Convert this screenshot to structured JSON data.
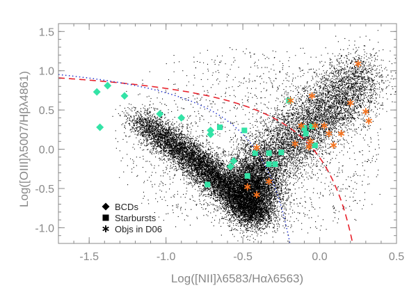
{
  "chart_data": {
    "type": "scatter",
    "title": "",
    "xlabel": "Log([NII]λ6583/Hαλ6563)",
    "ylabel": "Log([OIII]λ5007/Hβλ4861)",
    "xlim": [
      -1.7,
      0.5
    ],
    "ylim": [
      -1.2,
      1.6
    ],
    "x_ticks": [
      "-1.5",
      "-1.0",
      "-0.5",
      "0.0",
      "0.5"
    ],
    "y_ticks": [
      "-1.0",
      "-0.5",
      "0.0",
      "0.5",
      "1.0",
      "1.5"
    ],
    "grid": false,
    "legend_position": "bottom-left",
    "colors": {
      "background_cloud": "#000000",
      "bcd_starburst": "#33e3a6",
      "d06_objects": "#f4731f",
      "kewley_curve": "#e8202a",
      "kauffmann_curve": "#2233cc",
      "axis": "#888888"
    },
    "legend": [
      {
        "label": "BCDs",
        "marker": "diamond"
      },
      {
        "label": "Starbursts",
        "marker": "square"
      },
      {
        "label": "Objs in D06",
        "marker": "asterisk"
      }
    ],
    "series": [
      {
        "name": "BCDs",
        "marker": "diamond",
        "color": "#33e3a6",
        "points": [
          [
            -1.45,
            0.73
          ],
          [
            -1.38,
            0.81
          ],
          [
            -1.27,
            0.68
          ],
          [
            -1.43,
            0.28
          ],
          [
            -1.04,
            0.45
          ],
          [
            -0.9,
            0.4
          ],
          [
            -0.71,
            0.24
          ],
          [
            -0.71,
            0.19
          ],
          [
            -0.56,
            -0.15
          ],
          [
            -0.58,
            -0.22
          ]
        ]
      },
      {
        "name": "Starbursts",
        "marker": "square",
        "color": "#33e3a6",
        "points": [
          [
            -0.65,
            0.28
          ],
          [
            -0.49,
            0.24
          ],
          [
            -0.47,
            -0.34
          ],
          [
            -0.73,
            -0.45
          ],
          [
            -0.33,
            -0.19
          ],
          [
            -0.42,
            -0.05
          ],
          [
            -0.33,
            -0.05
          ],
          [
            -0.25,
            -0.04
          ],
          [
            -0.29,
            -0.19
          ],
          [
            -0.2,
            0.62
          ],
          [
            -0.1,
            0.27
          ],
          [
            -0.05,
            0.29
          ],
          [
            -0.09,
            0.2
          ],
          [
            -0.03,
            0.05
          ]
        ]
      },
      {
        "name": "Objs in D06",
        "marker": "asterisk",
        "color": "#f4731f",
        "points": [
          [
            -0.47,
            -0.48
          ],
          [
            -0.41,
            -0.58
          ],
          [
            -0.33,
            -0.41
          ],
          [
            -0.41,
            0.02
          ],
          [
            -0.19,
            0.62
          ],
          [
            -0.05,
            0.68
          ],
          [
            -0.03,
            0.3
          ],
          [
            -0.12,
            0.3
          ],
          [
            0.03,
            0.3
          ],
          [
            -0.06,
            0.1
          ],
          [
            0.06,
            0.2
          ],
          [
            0.09,
            0.05
          ],
          [
            0.14,
            0.2
          ],
          [
            0.2,
            0.59
          ],
          [
            0.25,
            1.09
          ],
          [
            0.3,
            0.48
          ],
          [
            0.32,
            0.36
          ],
          [
            -0.16,
            0.07
          ],
          [
            -0.07,
            0.03
          ]
        ]
      },
      {
        "name": "",
        "marker": "dot",
        "color": "#000000",
        "generated_cloud": true,
        "description_points": "SDSS emission-line galaxy distribution"
      }
    ],
    "curves": [
      {
        "style": "dashed",
        "color": "#e8202a",
        "formula": "0.61/(x-0.47)+1.19"
      },
      {
        "style": "dotted",
        "color": "#2233cc",
        "formula": "0.61/(x-0.05)+1.3"
      }
    ]
  }
}
